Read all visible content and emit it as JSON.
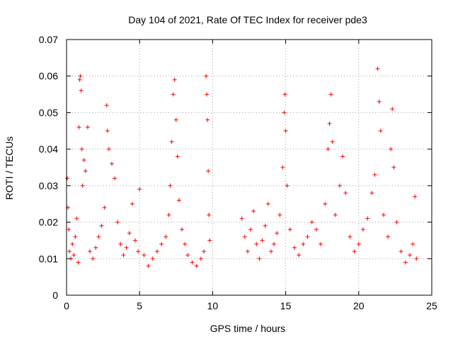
{
  "chart_data": {
    "type": "scatter",
    "title": "Day 104 of 2021, Rate Of TEC Index for receiver pde3",
    "xlabel": "GPS time / hours",
    "ylabel": "ROTI / TECUs",
    "xlim": [
      0,
      25
    ],
    "ylim": [
      0,
      0.07
    ],
    "xticks": [
      0,
      5,
      10,
      15,
      20,
      25
    ],
    "xtick_labels": [
      "0",
      "5",
      "10",
      "15",
      "20",
      "25"
    ],
    "yticks": [
      0,
      0.01,
      0.02,
      0.03,
      0.04,
      0.05,
      0.06,
      0.07
    ],
    "ytick_labels": [
      "0",
      "0.01",
      "0.02",
      "0.03",
      "0.04",
      "0.05",
      "0.06",
      "0.07"
    ],
    "grid": true,
    "marker": "+",
    "color": "#ff0000",
    "series": [
      {
        "name": "ROTI",
        "points": [
          [
            0.05,
            0.032
          ],
          [
            0.1,
            0.024
          ],
          [
            0.15,
            0.018
          ],
          [
            0.2,
            0.012
          ],
          [
            0.3,
            0.01
          ],
          [
            0.4,
            0.014
          ],
          [
            0.5,
            0.011
          ],
          [
            0.6,
            0.016
          ],
          [
            0.7,
            0.021
          ],
          [
            0.8,
            0.009
          ],
          [
            0.85,
            0.046
          ],
          [
            0.9,
            0.059
          ],
          [
            0.95,
            0.06
          ],
          [
            1.0,
            0.056
          ],
          [
            1.05,
            0.04
          ],
          [
            1.1,
            0.03
          ],
          [
            1.2,
            0.037
          ],
          [
            1.3,
            0.034
          ],
          [
            1.45,
            0.046
          ],
          [
            1.6,
            0.012
          ],
          [
            1.8,
            0.01
          ],
          [
            2.0,
            0.013
          ],
          [
            2.2,
            0.016
          ],
          [
            2.4,
            0.019
          ],
          [
            2.6,
            0.024
          ],
          [
            2.75,
            0.052
          ],
          [
            2.8,
            0.045
          ],
          [
            2.9,
            0.04
          ],
          [
            3.1,
            0.036
          ],
          [
            3.3,
            0.032
          ],
          [
            3.5,
            0.02
          ],
          [
            3.7,
            0.014
          ],
          [
            3.9,
            0.011
          ],
          [
            4.1,
            0.013
          ],
          [
            4.3,
            0.017
          ],
          [
            4.5,
            0.025
          ],
          [
            4.7,
            0.015
          ],
          [
            4.9,
            0.012
          ],
          [
            5.0,
            0.029
          ],
          [
            5.3,
            0.011
          ],
          [
            5.6,
            0.008
          ],
          [
            5.9,
            0.01
          ],
          [
            6.2,
            0.012
          ],
          [
            6.5,
            0.014
          ],
          [
            6.8,
            0.016
          ],
          [
            7.0,
            0.022
          ],
          [
            7.1,
            0.03
          ],
          [
            7.2,
            0.042
          ],
          [
            7.3,
            0.055
          ],
          [
            7.4,
            0.059
          ],
          [
            7.5,
            0.048
          ],
          [
            7.6,
            0.038
          ],
          [
            7.7,
            0.026
          ],
          [
            7.9,
            0.018
          ],
          [
            8.1,
            0.014
          ],
          [
            8.3,
            0.011
          ],
          [
            8.6,
            0.009
          ],
          [
            8.9,
            0.008
          ],
          [
            9.2,
            0.01
          ],
          [
            9.4,
            0.012
          ],
          [
            9.55,
            0.06
          ],
          [
            9.6,
            0.055
          ],
          [
            9.65,
            0.048
          ],
          [
            9.7,
            0.034
          ],
          [
            9.75,
            0.022
          ],
          [
            9.8,
            0.015
          ],
          [
            12.0,
            0.021
          ],
          [
            12.2,
            0.016
          ],
          [
            12.4,
            0.012
          ],
          [
            12.6,
            0.018
          ],
          [
            12.8,
            0.023
          ],
          [
            13.0,
            0.014
          ],
          [
            13.2,
            0.01
          ],
          [
            13.4,
            0.015
          ],
          [
            13.6,
            0.019
          ],
          [
            13.8,
            0.025
          ],
          [
            14.0,
            0.012
          ],
          [
            14.2,
            0.014
          ],
          [
            14.4,
            0.017
          ],
          [
            14.6,
            0.022
          ],
          [
            14.8,
            0.035
          ],
          [
            14.9,
            0.05
          ],
          [
            14.95,
            0.055
          ],
          [
            15.0,
            0.045
          ],
          [
            15.1,
            0.03
          ],
          [
            15.3,
            0.018
          ],
          [
            15.6,
            0.013
          ],
          [
            15.9,
            0.011
          ],
          [
            16.2,
            0.014
          ],
          [
            16.5,
            0.016
          ],
          [
            16.8,
            0.02
          ],
          [
            17.1,
            0.018
          ],
          [
            17.4,
            0.014
          ],
          [
            17.7,
            0.025
          ],
          [
            17.9,
            0.04
          ],
          [
            18.0,
            0.047
          ],
          [
            18.1,
            0.055
          ],
          [
            18.2,
            0.042
          ],
          [
            18.4,
            0.022
          ],
          [
            18.7,
            0.03
          ],
          [
            18.9,
            0.038
          ],
          [
            19.1,
            0.028
          ],
          [
            19.4,
            0.016
          ],
          [
            19.7,
            0.012
          ],
          [
            20.0,
            0.014
          ],
          [
            20.3,
            0.018
          ],
          [
            20.6,
            0.021
          ],
          [
            20.9,
            0.028
          ],
          [
            21.1,
            0.033
          ],
          [
            21.3,
            0.062
          ],
          [
            21.4,
            0.053
          ],
          [
            21.5,
            0.045
          ],
          [
            21.7,
            0.022
          ],
          [
            22.0,
            0.016
          ],
          [
            22.2,
            0.04
          ],
          [
            22.3,
            0.051
          ],
          [
            22.4,
            0.035
          ],
          [
            22.6,
            0.02
          ],
          [
            22.9,
            0.012
          ],
          [
            23.2,
            0.009
          ],
          [
            23.5,
            0.011
          ],
          [
            23.7,
            0.014
          ],
          [
            23.85,
            0.027
          ],
          [
            23.95,
            0.01
          ]
        ]
      }
    ]
  }
}
